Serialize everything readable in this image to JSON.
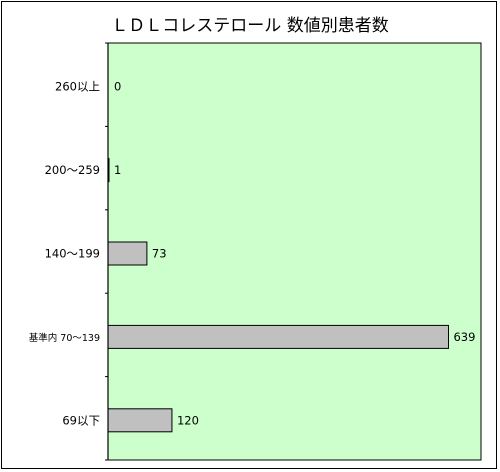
{
  "chart_data": {
    "type": "bar",
    "orientation": "horizontal",
    "title": "ＬＤＬコレステロール 数値別患者数",
    "categories": [
      "260以上",
      "200～259",
      "140～199",
      "基準内 70～139",
      "69以下"
    ],
    "values": [
      0,
      1,
      73,
      639,
      120
    ],
    "xlim": [
      0,
      700
    ],
    "grid": false,
    "legend": "none"
  },
  "colors": {
    "plot_background": "#ccffcc",
    "bar_fill": "#c0c0c0",
    "bar_stroke": "#000000",
    "axis": "#000000",
    "frame": "#000000"
  }
}
